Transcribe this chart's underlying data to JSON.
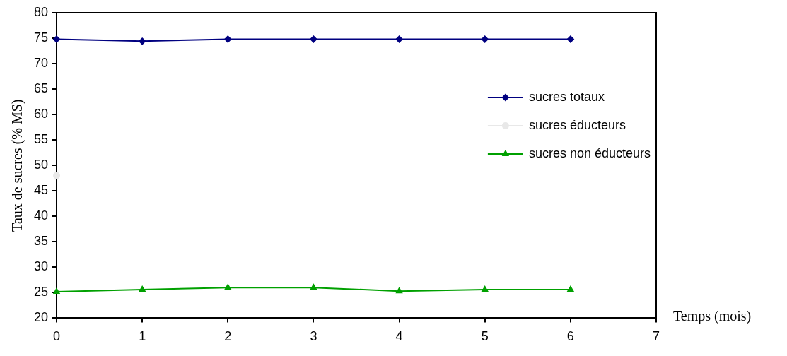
{
  "chart_data": {
    "type": "line",
    "xlabel": "Temps (mois)",
    "ylabel": "Taux de sucres (% MS)",
    "x": [
      0,
      1,
      2,
      3,
      4,
      5,
      6
    ],
    "series": [
      {
        "name": "sucres totaux",
        "color": "#000080",
        "marker": "diamond",
        "values": [
          74.8,
          74.4,
          74.8,
          74.8,
          74.8,
          74.8,
          74.8
        ]
      },
      {
        "name": "sucres éducteurs",
        "color": "#e8e8e8",
        "marker": "circle",
        "values": [
          48,
          null,
          null,
          null,
          null,
          null,
          null
        ]
      },
      {
        "name": "sucres non éducteurs",
        "color": "#00a000",
        "marker": "triangle",
        "values": [
          25.2,
          25.6,
          26,
          26,
          25.3,
          25.6,
          25.6
        ]
      }
    ],
    "xlim": [
      0,
      7
    ],
    "xticks": [
      0,
      1,
      2,
      3,
      4,
      5,
      6,
      7
    ],
    "ylim": [
      20,
      80
    ],
    "yticks": [
      20,
      25,
      30,
      35,
      40,
      45,
      50,
      55,
      60,
      65,
      70,
      75,
      80
    ],
    "grid": false,
    "legend": "top right"
  }
}
